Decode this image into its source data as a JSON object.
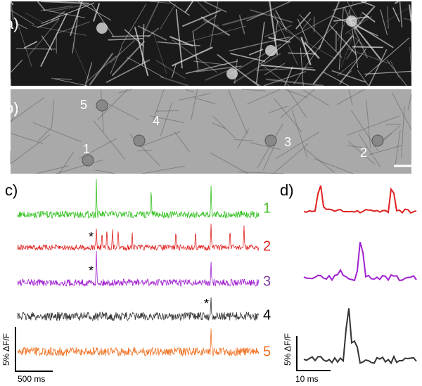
{
  "panels": {
    "a": "a)",
    "b": "b)",
    "c": "c)",
    "d": "d)"
  },
  "cells": [
    "1",
    "2",
    "3",
    "4",
    "5"
  ],
  "traces": [
    "1",
    "2",
    "3",
    "4",
    "5"
  ],
  "asterisks": [
    "*",
    "*",
    "*"
  ],
  "scale_bars": {
    "c_amplitude": "5% ΔF/F",
    "c_time": "500 ms",
    "d_amplitude": "5% ΔF/F",
    "d_time": "10 ms"
  }
}
